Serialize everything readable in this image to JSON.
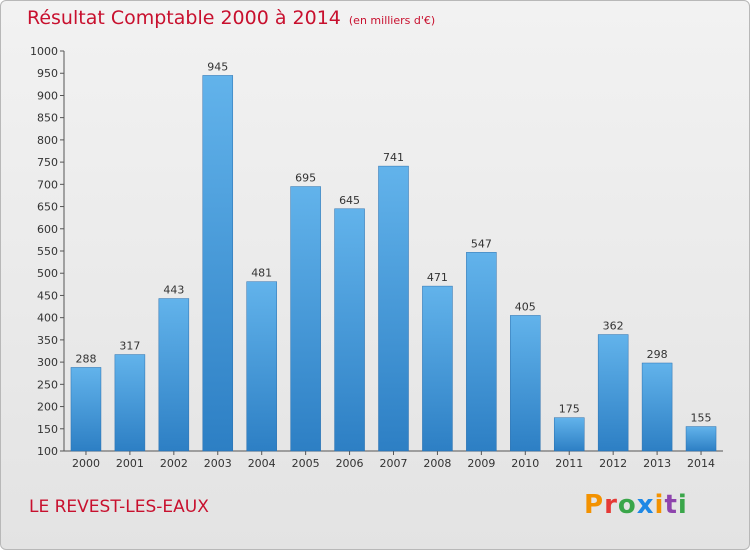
{
  "header": {
    "title": "Résultat Comptable 2000 à 2014",
    "unit": "(en milliers d'€)"
  },
  "commune": "LE REVEST-LES-EAUX",
  "logo": {
    "letters": [
      "P",
      "r",
      "o",
      "x",
      "i",
      "t",
      "i"
    ],
    "colors": [
      "#f39200",
      "#e53935",
      "#3aa64a",
      "#1e88e5",
      "#f39200",
      "#8e44ad",
      "#3aa64a"
    ]
  },
  "colors": {
    "bar_top": "#62b3eb",
    "bar_bottom": "#2d7fc4",
    "text_accent": "#c8102e"
  },
  "chart_data": {
    "type": "bar",
    "title": "Résultat Comptable 2000 à 2014",
    "subtitle": "(en milliers d'€)",
    "xlabel": "",
    "ylabel": "",
    "categories": [
      "2000",
      "2001",
      "2002",
      "2003",
      "2004",
      "2005",
      "2006",
      "2007",
      "2008",
      "2009",
      "2010",
      "2011",
      "2012",
      "2013",
      "2014"
    ],
    "values": [
      288,
      317,
      443,
      945,
      481,
      695,
      645,
      741,
      471,
      547,
      405,
      175,
      362,
      298,
      155
    ],
    "ylim": [
      100,
      1000
    ],
    "yticks": [
      100,
      150,
      200,
      250,
      300,
      350,
      400,
      450,
      500,
      550,
      600,
      650,
      700,
      750,
      800,
      850,
      900,
      950,
      1000
    ],
    "grid": false,
    "legend": "none"
  }
}
